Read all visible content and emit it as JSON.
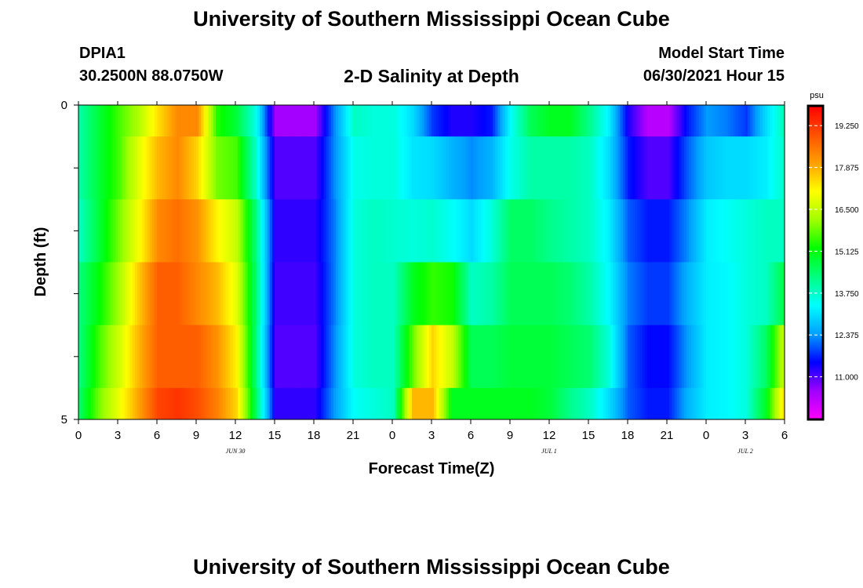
{
  "header": {
    "title_top": "University of Southern Mississippi Ocean Cube",
    "title_bottom": "University of Southern Mississippi Ocean Cube",
    "station": "DPIA1",
    "coords": "30.2500N  88.0750W",
    "subtitle": "2-D Salinity at Depth",
    "model_label": "Model Start Time",
    "model_time": "06/30/2021 Hour 15"
  },
  "chart_data": {
    "type": "heatmap",
    "title": "2-D Salinity at Depth",
    "xlabel": "Forecast Time(Z)",
    "ylabel": "Depth (ft)",
    "ylim": [
      0,
      5
    ],
    "y_ticks": [
      "0",
      "5"
    ],
    "x_tick_labels": [
      "0",
      "3",
      "6",
      "9",
      "12",
      "15",
      "18",
      "21",
      "0",
      "3",
      "6",
      "9",
      "12",
      "15",
      "18",
      "21",
      "0",
      "3",
      "6"
    ],
    "date_labels": [
      {
        "label": "JUN 30",
        "hour": 12
      },
      {
        "label": "JUL 1",
        "hour": 36
      },
      {
        "label": "JUL 2",
        "hour": 51
      }
    ],
    "colorbar": {
      "unit": "psu",
      "min": 9.6,
      "max": 19.9,
      "ticks": [
        "19.250",
        "17.875",
        "16.500",
        "15.125",
        "13.750",
        "12.375",
        "11.000"
      ],
      "tick_values": [
        19.25,
        17.875,
        16.5,
        15.125,
        13.75,
        12.375,
        11.0
      ],
      "colors": [
        "#ff00ff",
        "#a000ff",
        "#0000ff",
        "#00a0ff",
        "#00ffff",
        "#00ff80",
        "#00ff00",
        "#a0ff00",
        "#ffff00",
        "#ffa000",
        "#ff5000",
        "#ff0000"
      ]
    },
    "depth_bands": [
      "0-0.5",
      "0.5-1.5",
      "1.5-2.5",
      "2.5-3.5",
      "3.5-4.5",
      "4.5-5"
    ],
    "rows": [
      [
        14.0,
        14.8,
        15.6,
        16.3,
        17.4,
        18.3,
        18.3,
        15.4,
        14.8,
        13.5,
        10.5,
        10.5,
        10.5,
        12.3,
        13.8,
        13.6,
        13.6,
        13.0,
        11.8,
        11.3,
        11.3,
        11.6,
        13.4,
        14.6,
        15.0,
        15.0,
        14.2,
        13.2,
        11.3,
        10.3,
        10.3,
        11.6,
        12.4,
        12.2,
        11.8,
        13.0,
        14.0
      ],
      [
        14.0,
        14.8,
        15.6,
        16.8,
        17.8,
        18.3,
        17.5,
        15.9,
        15.6,
        13.7,
        11.0,
        11.0,
        11.0,
        12.3,
        13.5,
        13.6,
        13.6,
        13.1,
        13.0,
        12.6,
        12.3,
        12.6,
        13.5,
        14.0,
        14.0,
        14.0,
        13.8,
        13.0,
        11.6,
        11.0,
        11.0,
        12.0,
        12.8,
        13.0,
        13.0,
        13.2,
        13.8
      ],
      [
        13.8,
        14.8,
        15.9,
        17.0,
        18.3,
        18.6,
        18.2,
        17.2,
        16.5,
        14.3,
        11.2,
        11.2,
        11.2,
        12.2,
        13.6,
        13.8,
        13.7,
        13.6,
        13.7,
        13.4,
        13.0,
        13.6,
        14.5,
        14.5,
        14.2,
        14.0,
        13.8,
        13.2,
        12.0,
        11.6,
        11.6,
        12.3,
        13.2,
        13.4,
        13.6,
        13.8,
        13.8
      ],
      [
        14.3,
        15.2,
        16.2,
        17.6,
        18.8,
        18.8,
        18.3,
        17.8,
        16.8,
        14.4,
        11.1,
        11.1,
        11.1,
        12.2,
        13.6,
        13.8,
        13.8,
        15.0,
        15.5,
        15.3,
        13.8,
        14.0,
        14.6,
        14.6,
        14.6,
        14.4,
        14.0,
        13.3,
        12.2,
        11.8,
        11.8,
        12.6,
        13.2,
        13.3,
        13.6,
        13.8,
        14.8
      ],
      [
        14.3,
        15.6,
        16.6,
        17.8,
        18.8,
        18.8,
        18.8,
        18.2,
        17.2,
        14.3,
        11.0,
        11.0,
        11.0,
        12.3,
        13.6,
        13.8,
        13.8,
        15.8,
        17.5,
        16.5,
        14.6,
        14.6,
        14.8,
        14.8,
        14.8,
        14.6,
        14.4,
        13.6,
        12.0,
        11.5,
        11.5,
        12.4,
        13.2,
        13.3,
        13.6,
        14.5,
        16.8
      ],
      [
        14.5,
        15.9,
        16.9,
        18.0,
        19.1,
        19.3,
        19.0,
        18.4,
        17.5,
        14.5,
        11.2,
        11.2,
        11.2,
        12.4,
        13.4,
        13.6,
        13.8,
        17.8,
        17.8,
        15.0,
        15.0,
        15.0,
        15.0,
        15.0,
        14.8,
        14.2,
        13.8,
        13.0,
        12.0,
        11.6,
        11.6,
        12.6,
        13.2,
        13.3,
        13.6,
        15.0,
        17.6
      ]
    ]
  }
}
